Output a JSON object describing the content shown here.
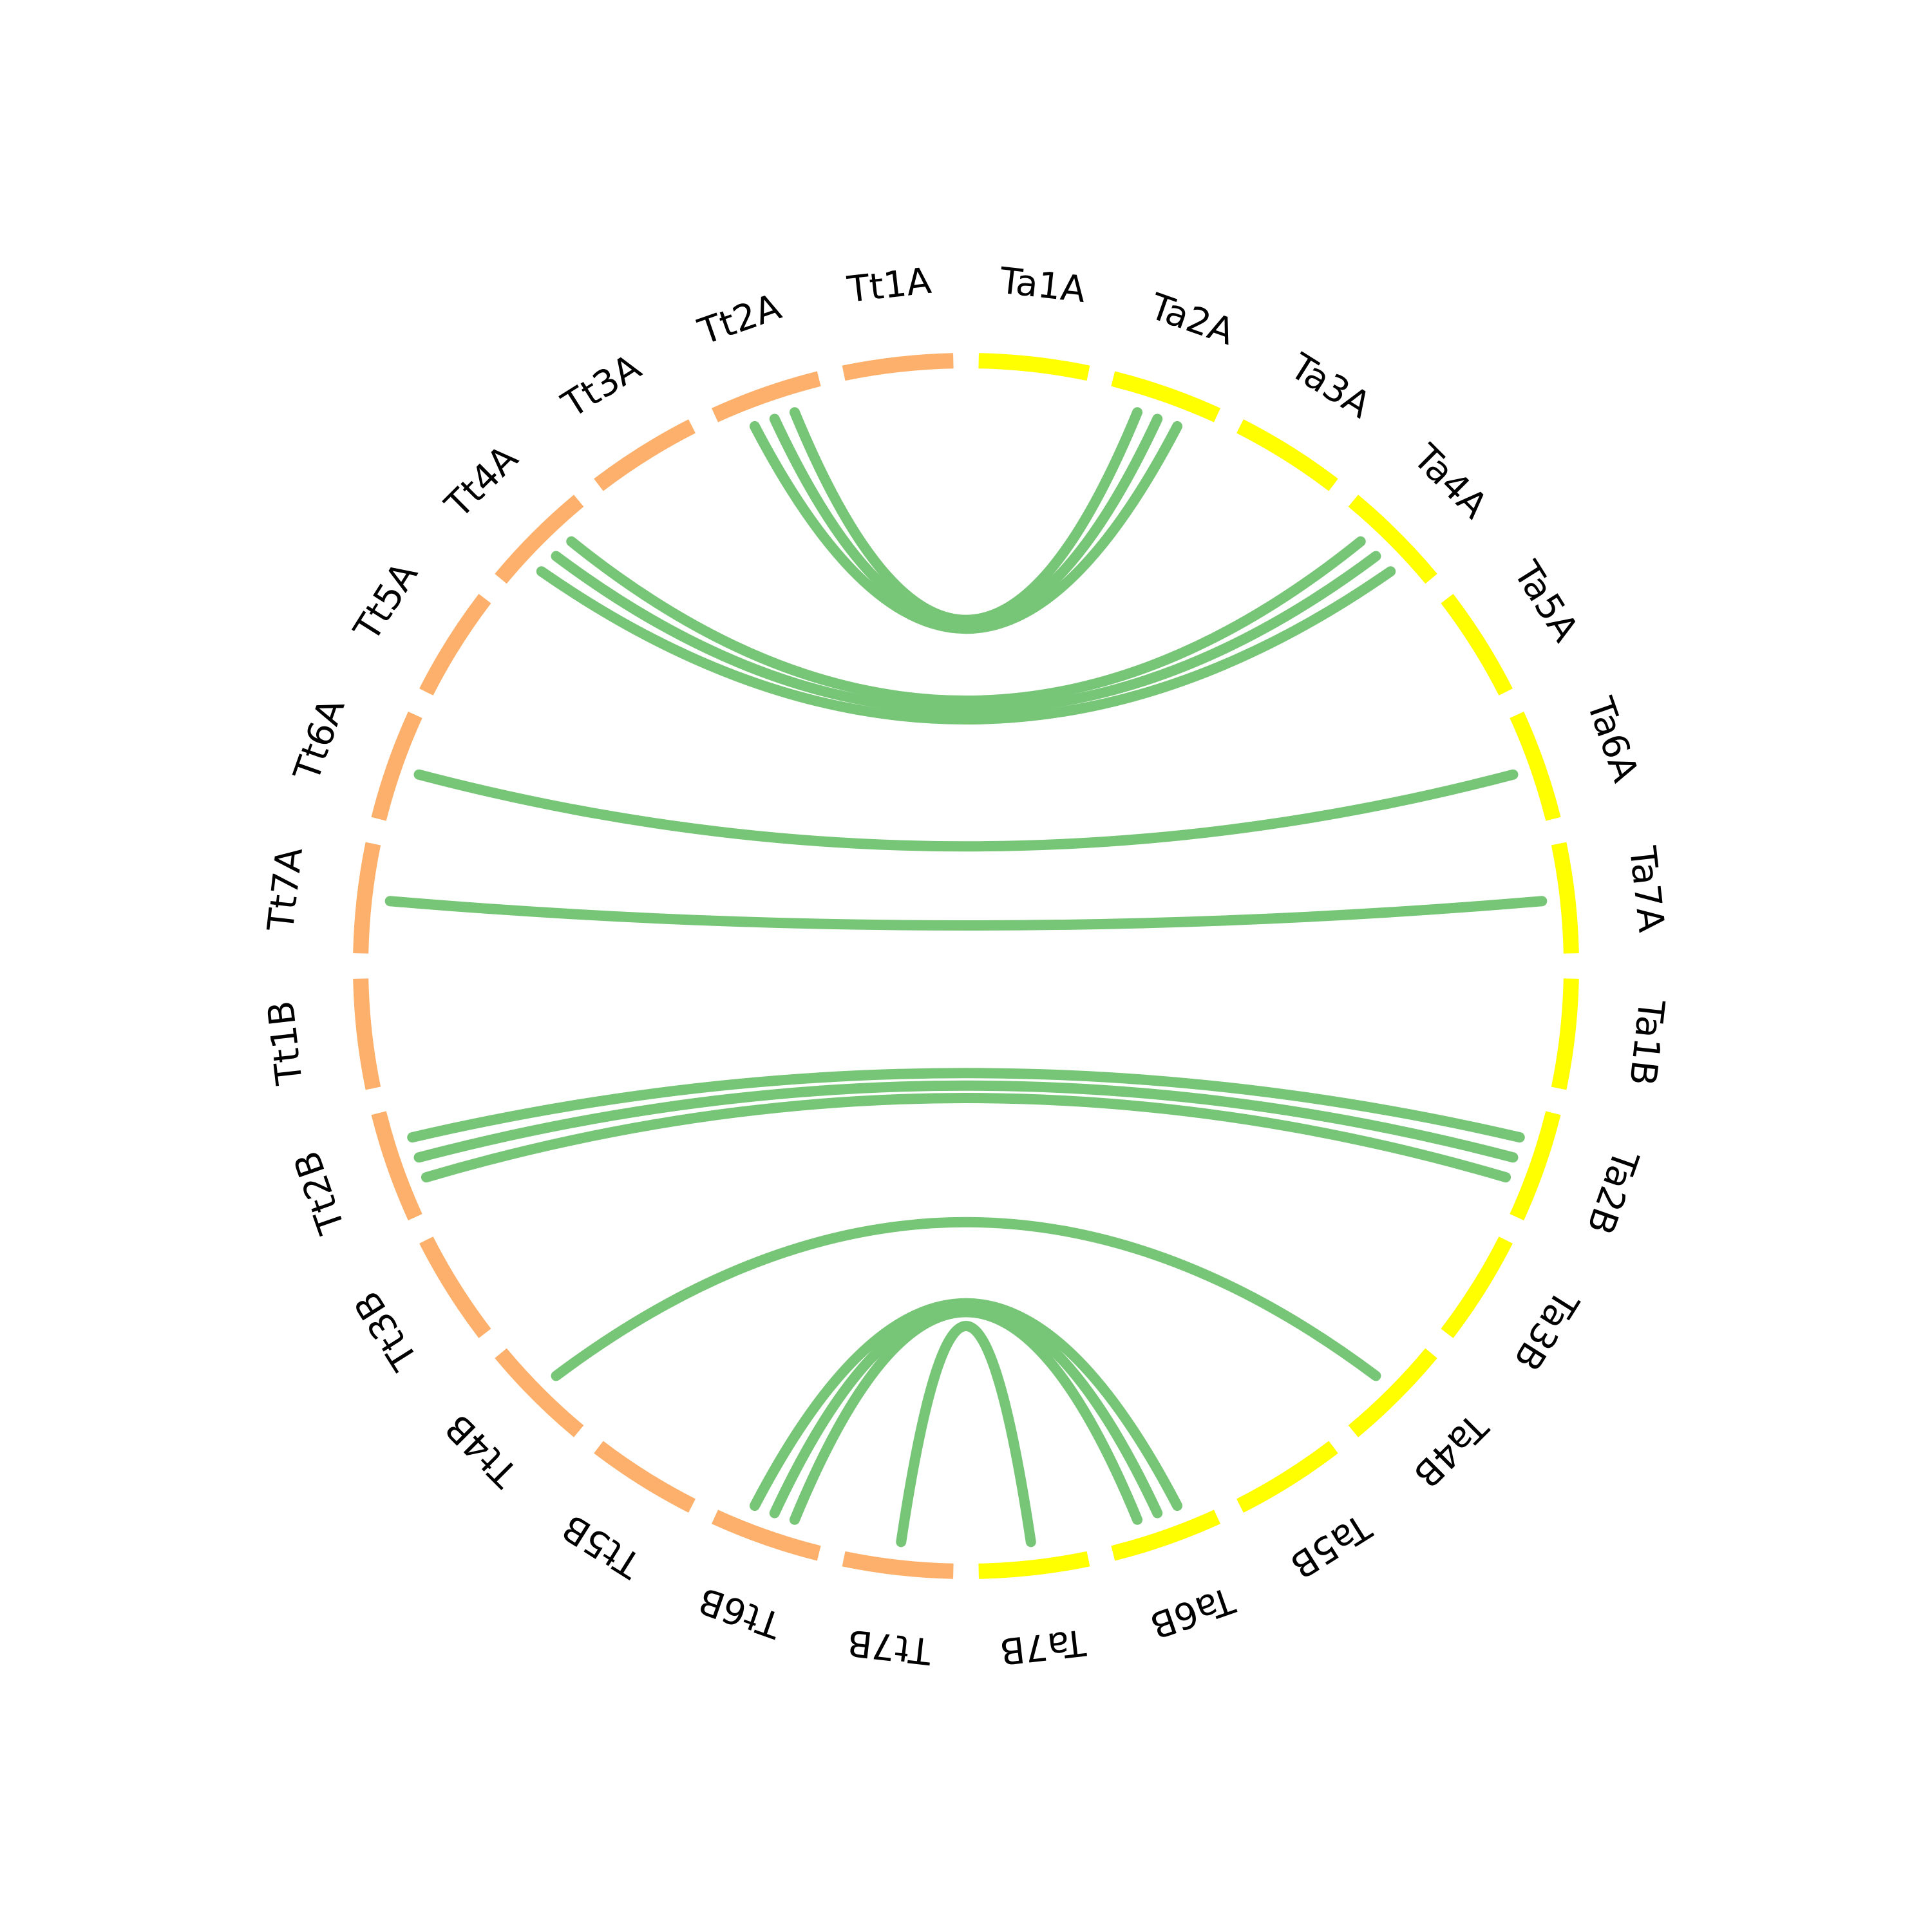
{
  "diagram": {
    "type": "circos",
    "colors": {
      "Tt": "#FDB06B",
      "Ta": "#FFFF00",
      "link": "#77C677"
    },
    "segments": [
      {
        "id": "Ta1A",
        "label": "Ta1A",
        "genome": "Ta"
      },
      {
        "id": "Ta2A",
        "label": "Ta2A",
        "genome": "Ta"
      },
      {
        "id": "Ta3A",
        "label": "Ta3A",
        "genome": "Ta"
      },
      {
        "id": "Ta4A",
        "label": "Ta4A",
        "genome": "Ta"
      },
      {
        "id": "Ta5A",
        "label": "Ta5A",
        "genome": "Ta"
      },
      {
        "id": "Ta6A",
        "label": "Ta6A",
        "genome": "Ta"
      },
      {
        "id": "Ta7A",
        "label": "Ta7A",
        "genome": "Ta"
      },
      {
        "id": "Ta1B",
        "label": "Ta1B",
        "genome": "Ta"
      },
      {
        "id": "Ta2B",
        "label": "Ta2B",
        "genome": "Ta"
      },
      {
        "id": "Ta3B",
        "label": "Ta3B",
        "genome": "Ta"
      },
      {
        "id": "Ta4B",
        "label": "Ta4B",
        "genome": "Ta"
      },
      {
        "id": "Ta5B",
        "label": "Ta5B",
        "genome": "Ta"
      },
      {
        "id": "Ta6B",
        "label": "Ta6B",
        "genome": "Ta"
      },
      {
        "id": "Ta7B",
        "label": "Ta7B",
        "genome": "Ta"
      },
      {
        "id": "Tt7B",
        "label": "Tt7B",
        "genome": "Tt"
      },
      {
        "id": "Tt6B",
        "label": "Tt6B",
        "genome": "Tt"
      },
      {
        "id": "Tt5B",
        "label": "Tt5B",
        "genome": "Tt"
      },
      {
        "id": "Tt4B",
        "label": "Tt4B",
        "genome": "Tt"
      },
      {
        "id": "Tt3B",
        "label": "Tt3B",
        "genome": "Tt"
      },
      {
        "id": "Tt2B",
        "label": "Tt2B",
        "genome": "Tt"
      },
      {
        "id": "Tt1B",
        "label": "Tt1B",
        "genome": "Tt"
      },
      {
        "id": "Tt7A",
        "label": "Tt7A",
        "genome": "Tt"
      },
      {
        "id": "Tt6A",
        "label": "Tt6A",
        "genome": "Tt"
      },
      {
        "id": "Tt5A",
        "label": "Tt5A",
        "genome": "Tt"
      },
      {
        "id": "Tt4A",
        "label": "Tt4A",
        "genome": "Tt"
      },
      {
        "id": "Tt3A",
        "label": "Tt3A",
        "genome": "Tt"
      },
      {
        "id": "Tt2A",
        "label": "Tt2A",
        "genome": "Tt"
      },
      {
        "id": "Tt1A",
        "label": "Tt1A",
        "genome": "Tt"
      }
    ],
    "links": [
      {
        "from": "Tt2A",
        "to": "Ta2A"
      },
      {
        "from": "Tt2A",
        "to": "Ta2A"
      },
      {
        "from": "Tt2A",
        "to": "Ta2A"
      },
      {
        "from": "Tt4A",
        "to": "Ta4A"
      },
      {
        "from": "Tt4A",
        "to": "Ta4A"
      },
      {
        "from": "Tt4A",
        "to": "Ta4A"
      },
      {
        "from": "Tt6A",
        "to": "Ta6A"
      },
      {
        "from": "Tt7A",
        "to": "Ta7A"
      },
      {
        "from": "Tt2B",
        "to": "Ta2B"
      },
      {
        "from": "Tt2B",
        "to": "Ta2B"
      },
      {
        "from": "Tt2B",
        "to": "Ta2B"
      },
      {
        "from": "Tt4B",
        "to": "Ta4B"
      },
      {
        "from": "Tt6B",
        "to": "Ta6B"
      },
      {
        "from": "Tt6B",
        "to": "Ta6B"
      },
      {
        "from": "Tt6B",
        "to": "Ta6B"
      },
      {
        "from": "Tt7B",
        "to": "Ta7B"
      }
    ]
  }
}
